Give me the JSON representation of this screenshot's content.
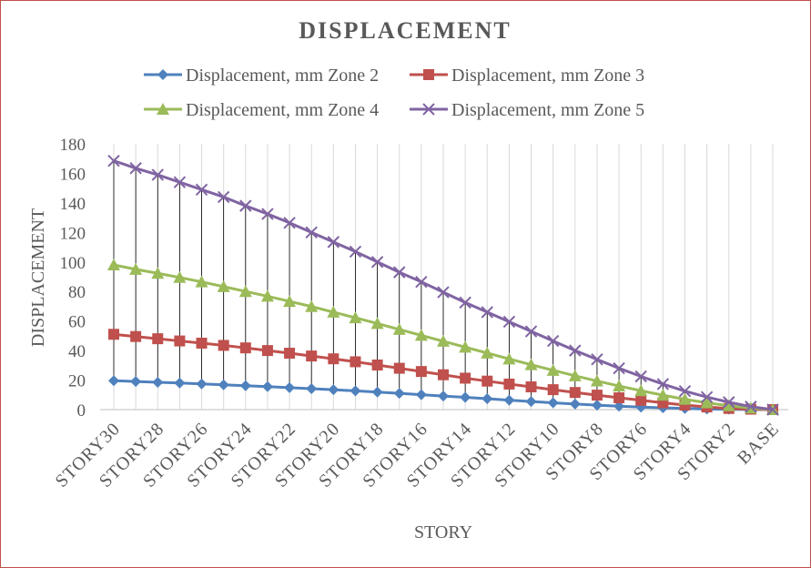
{
  "chart_data": {
    "type": "line",
    "title": "DISPLACEMENT",
    "xlabel": "STORY",
    "ylabel": "DISPLACEMENT",
    "ylim": [
      0,
      180
    ],
    "yticks": [
      0,
      20,
      40,
      60,
      80,
      100,
      120,
      140,
      160,
      180
    ],
    "grid": "vertical",
    "legend": "top",
    "categories": [
      "STORY30",
      "STORY29",
      "STORY28",
      "STORY27",
      "STORY26",
      "STORY25",
      "STORY24",
      "STORY23",
      "STORY22",
      "STORY21",
      "STORY20",
      "STORY19",
      "STORY18",
      "STORY17",
      "STORY16",
      "STORY15",
      "STORY14",
      "STORY13",
      "STORY12",
      "STORY11",
      "STORY10",
      "STORY9",
      "STORY8",
      "STORY7",
      "STORY6",
      "STORY5",
      "STORY4",
      "STORY3",
      "STORY2",
      "STORY1",
      "BASE"
    ],
    "xtick_labels": [
      "STORY30",
      "STORY28",
      "STORY26",
      "STORY24",
      "STORY22",
      "STORY20",
      "STORY18",
      "STORY16",
      "STORY14",
      "STORY12",
      "STORY10",
      "STORY8",
      "STORY6",
      "STORY4",
      "STORY2",
      "BASE"
    ],
    "series": [
      {
        "name": "Displacement, mm Zone 2",
        "color": "#4f81bd",
        "marker": "diamond",
        "values": [
          19.6,
          19.0,
          18.5,
          18.0,
          17.4,
          16.8,
          16.2,
          15.6,
          14.9,
          14.2,
          13.5,
          12.7,
          11.9,
          11.0,
          10.1,
          9.2,
          8.3,
          7.4,
          6.4,
          5.5,
          4.6,
          3.8,
          3.0,
          2.3,
          1.7,
          1.2,
          0.8,
          0.4,
          0.2,
          0.1,
          0
        ]
      },
      {
        "name": "Displacement, mm Zone 3",
        "color": "#c0504d",
        "marker": "square",
        "values": [
          51,
          49.5,
          48,
          46.5,
          45,
          43.5,
          41.8,
          40,
          38.2,
          36.3,
          34.4,
          32.4,
          30.2,
          28,
          25.8,
          23.6,
          21.3,
          19.3,
          17.3,
          15.4,
          13.5,
          11.6,
          9.8,
          8.0,
          6.3,
          4.6,
          3.1,
          1.8,
          0.8,
          0.3,
          0
        ]
      },
      {
        "name": "Displacement, mm Zone 4",
        "color": "#9bbb59",
        "marker": "triangle",
        "values": [
          98,
          95,
          92.3,
          89.5,
          86.5,
          83.3,
          80,
          76.8,
          73.3,
          69.8,
          66,
          62.2,
          58.3,
          54.3,
          50.3,
          46.3,
          42.3,
          38.3,
          34.3,
          30.4,
          26.6,
          22.9,
          19.4,
          16,
          12.8,
          9.8,
          7,
          4.6,
          2.6,
          1.1,
          0
        ]
      },
      {
        "name": "Displacement, mm Zone 5",
        "color": "#8064a2",
        "marker": "x",
        "values": [
          168.5,
          163.5,
          159,
          154,
          149,
          144,
          138,
          132.5,
          126.5,
          120,
          113.5,
          107,
          100,
          93,
          86.5,
          79.5,
          72.5,
          66,
          59.5,
          53,
          46.5,
          40,
          34,
          28,
          22.5,
          17.3,
          12.5,
          8.5,
          5,
          2,
          0
        ]
      }
    ]
  }
}
